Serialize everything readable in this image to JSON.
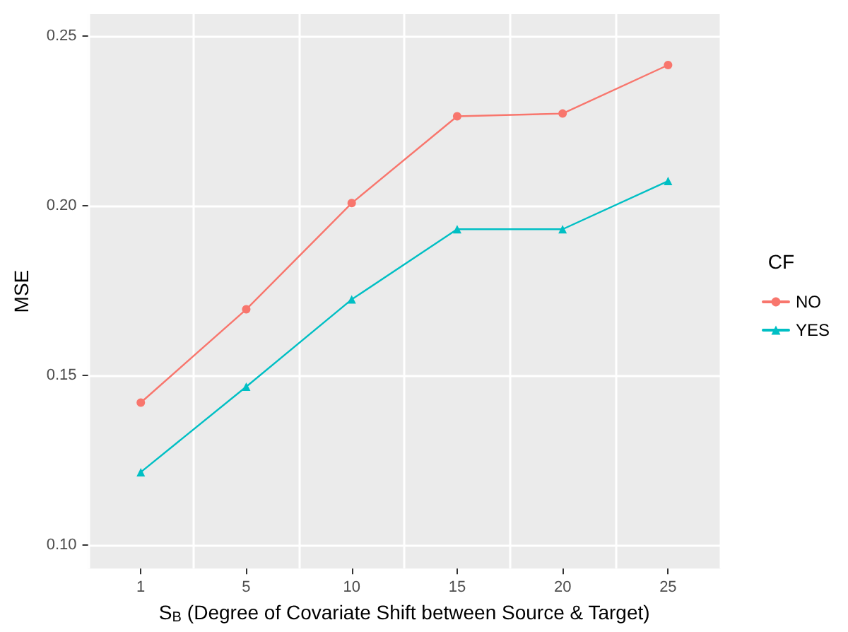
{
  "chart_data": {
    "type": "line",
    "xlabel": "S$_{B}$ (Degree of Covariate Shift between Source & Target)",
    "ylabel": "MSE",
    "legend_title": "CF",
    "categories": [
      "1",
      "5",
      "10",
      "15",
      "20",
      "25"
    ],
    "series": [
      {
        "name": "NO",
        "color": "#f8766d",
        "marker": "circle",
        "values": [
          0.142,
          0.1695,
          0.2008,
          0.2264,
          0.2272,
          0.2415
        ]
      },
      {
        "name": "YES",
        "color": "#00bfc4",
        "marker": "triangle",
        "values": [
          0.1215,
          0.1467,
          0.1724,
          0.1931,
          0.1931,
          0.2073
        ]
      }
    ],
    "ylim": [
      0.0931,
      0.2565
    ],
    "yticks": [
      {
        "value": 0.1,
        "label": "0.10"
      },
      0.15,
      {
        "value": 0.2,
        "label": "0.20"
      },
      0.25
    ],
    "grid": true,
    "legend": "right",
    "line_style": "solid"
  }
}
